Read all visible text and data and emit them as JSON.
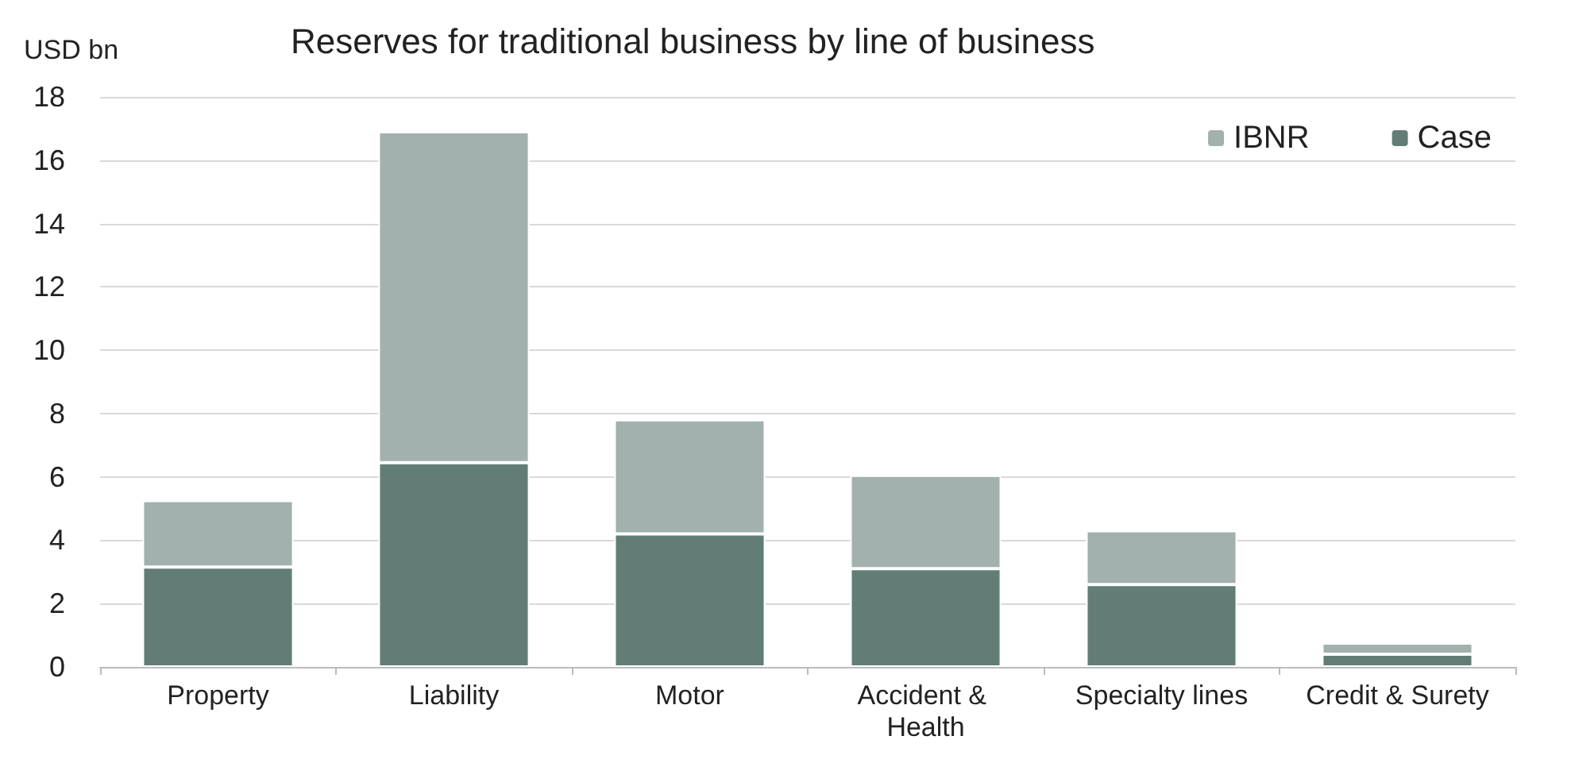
{
  "chart_data": {
    "type": "bar",
    "title": "Reserves for traditional business by line of business",
    "ylabel": "USD bn",
    "categories": [
      "Property",
      "Liability",
      "Motor",
      "Accident & Health",
      "Specialty lines",
      "Credit & Surety"
    ],
    "series": [
      {
        "name": "Case",
        "color": "#627d76",
        "values": [
          3.15,
          6.45,
          4.2,
          3.1,
          2.6,
          0.4
        ]
      },
      {
        "name": "IBNR",
        "color": "#a2b1ad",
        "values": [
          2.1,
          10.45,
          3.6,
          2.95,
          1.7,
          0.35
        ]
      }
    ],
    "stacked": true,
    "ylim": [
      0,
      18
    ],
    "yticks": [
      0,
      2,
      4,
      6,
      8,
      10,
      12,
      14,
      16,
      18
    ],
    "grid": "y",
    "legend": "top right"
  }
}
